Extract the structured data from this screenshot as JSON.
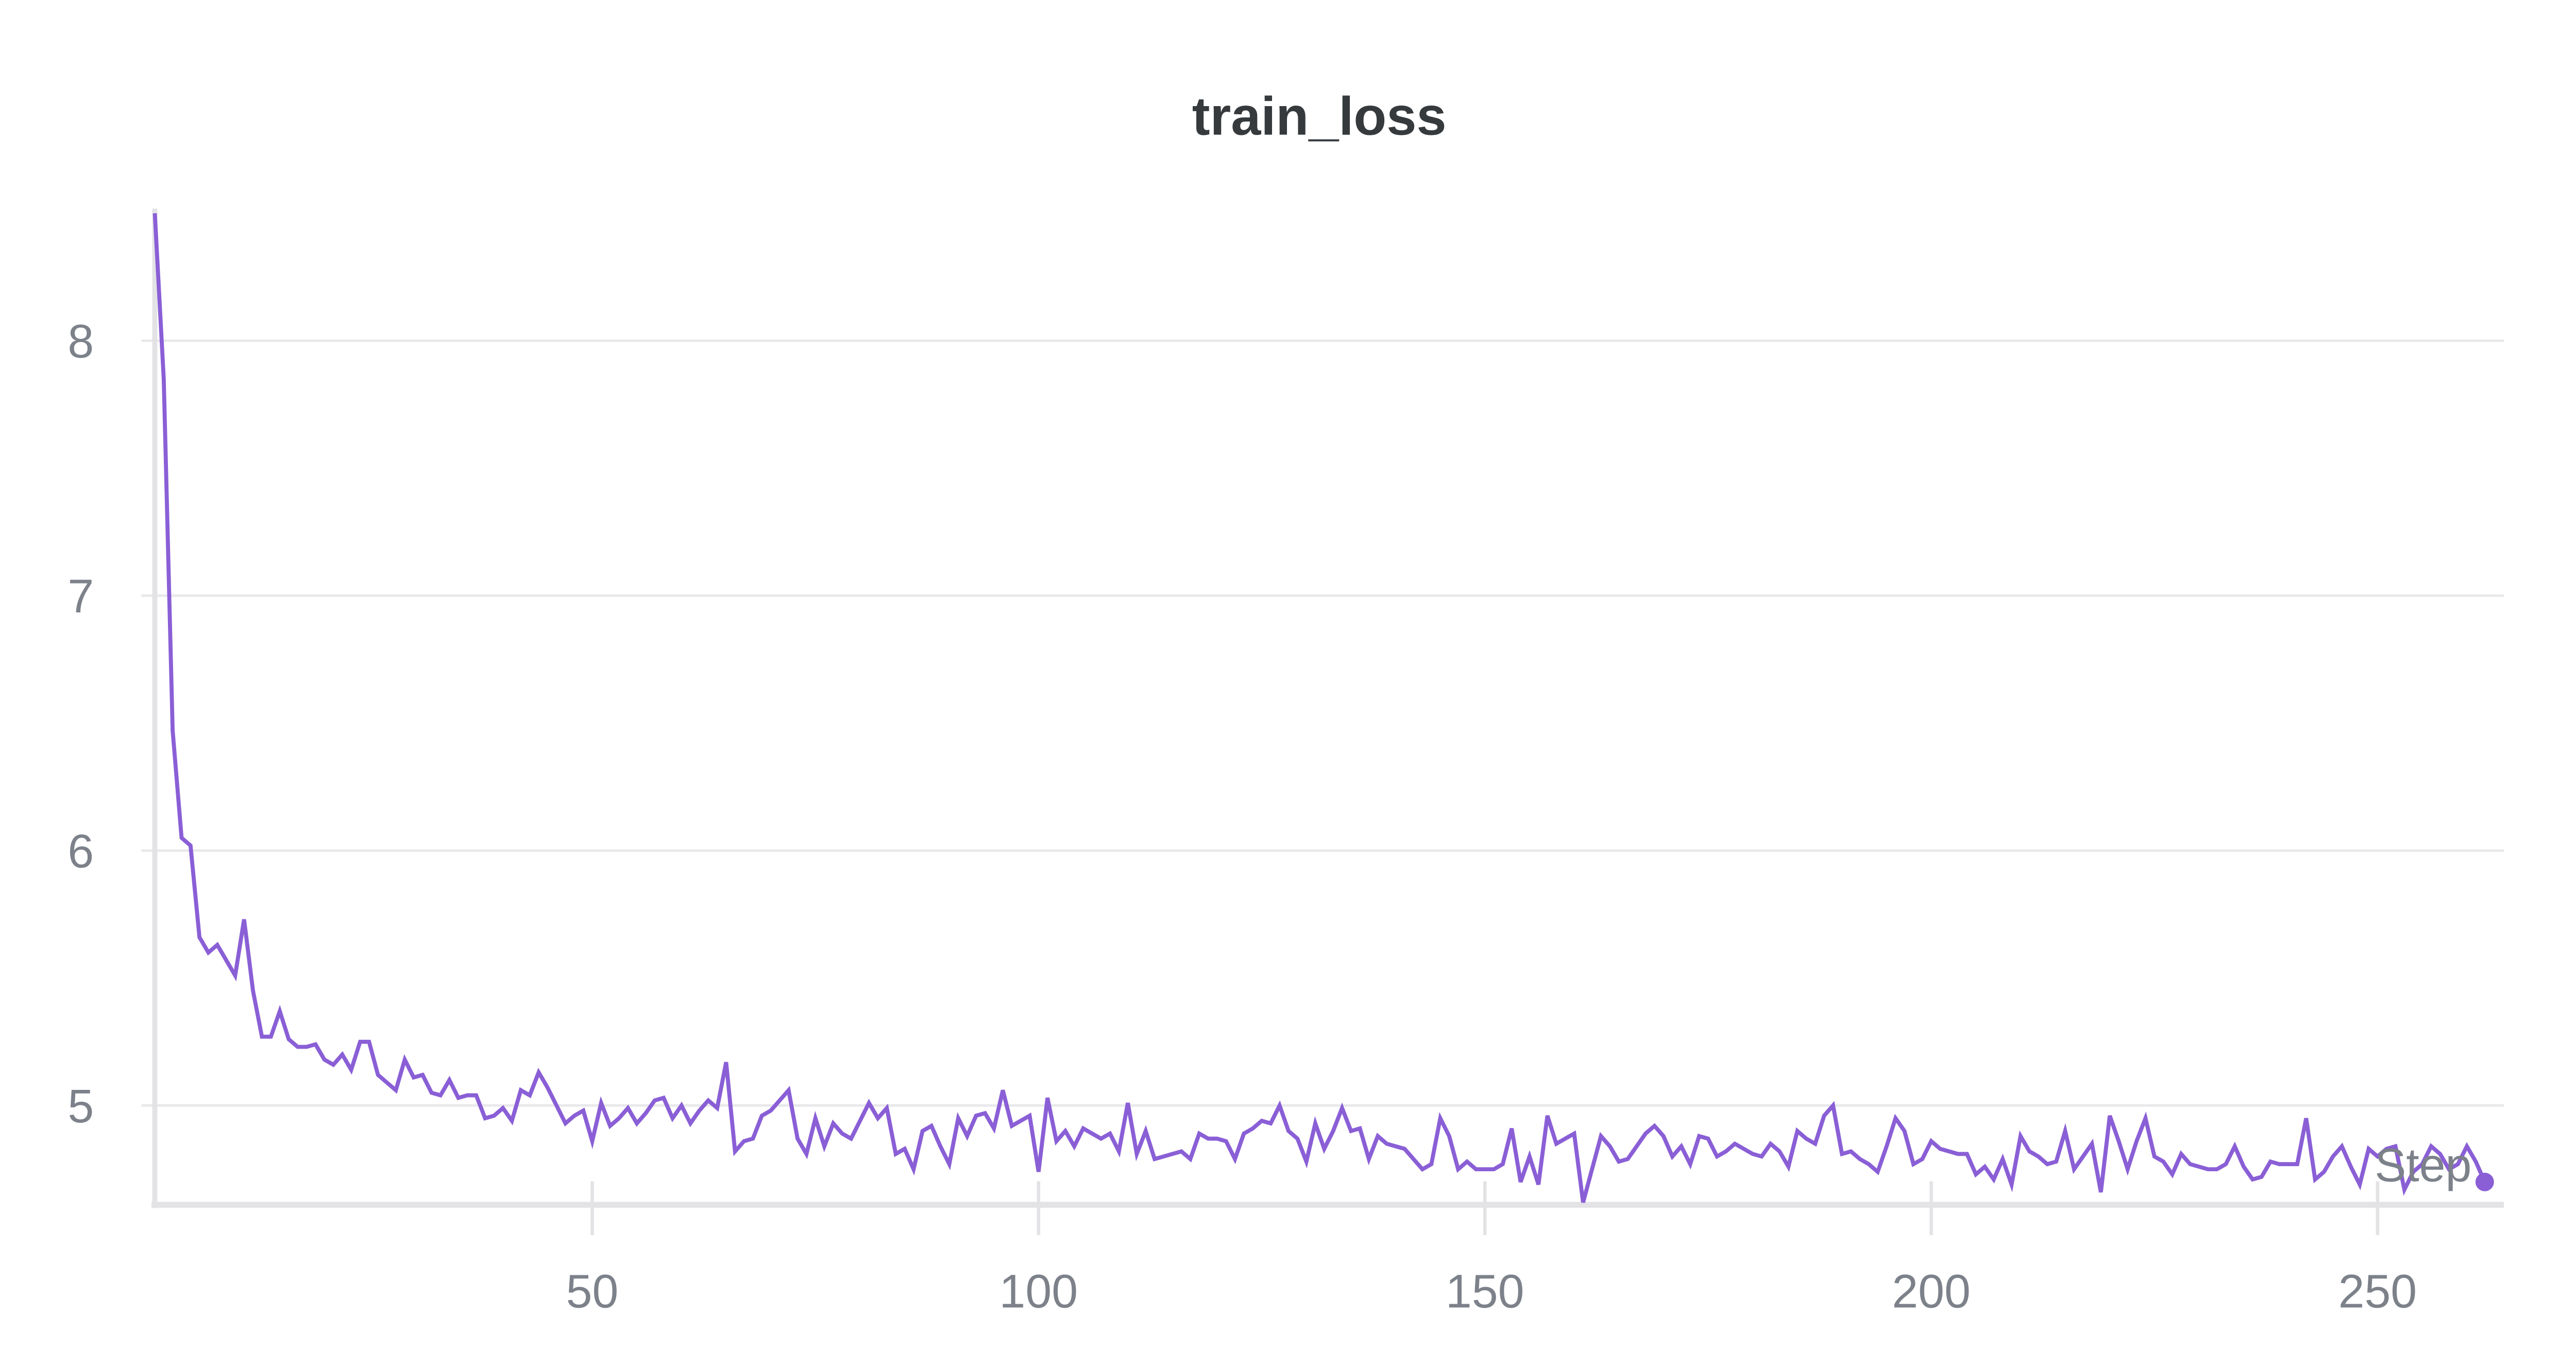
{
  "chart_data": {
    "type": "line",
    "title": "train_loss",
    "xlabel": "Step",
    "ylabel": "",
    "xlim": [
      1,
      264
    ],
    "ylim": [
      4.61,
      8.51
    ],
    "x_ticks": [
      50,
      100,
      150,
      200,
      250
    ],
    "y_ticks": [
      5,
      6,
      7,
      8
    ],
    "grid": {
      "horizontal": true,
      "vertical": false
    },
    "legend": null,
    "series": [
      {
        "name": "train_loss",
        "color": "#8a5fd6",
        "x_start": 1,
        "x_step": 1,
        "values": [
          8.5,
          7.85,
          6.47,
          6.05,
          6.02,
          5.66,
          5.6,
          5.63,
          5.57,
          5.51,
          5.73,
          5.45,
          5.27,
          5.27,
          5.37,
          5.26,
          5.23,
          5.23,
          5.24,
          5.18,
          5.16,
          5.2,
          5.14,
          5.25,
          5.25,
          5.12,
          5.09,
          5.06,
          5.18,
          5.11,
          5.12,
          5.05,
          5.04,
          5.1,
          5.03,
          5.04,
          5.04,
          4.95,
          4.96,
          4.99,
          4.94,
          5.06,
          5.04,
          5.13,
          5.07,
          5.0,
          4.93,
          4.96,
          4.98,
          4.86,
          5.01,
          4.92,
          4.95,
          4.99,
          4.93,
          4.97,
          5.02,
          5.03,
          4.95,
          5.0,
          4.93,
          4.98,
          5.02,
          4.99,
          5.17,
          4.82,
          4.86,
          4.87,
          4.96,
          4.98,
          5.02,
          5.06,
          4.87,
          4.81,
          4.95,
          4.84,
          4.93,
          4.89,
          4.87,
          4.94,
          5.01,
          4.95,
          4.99,
          4.81,
          4.83,
          4.75,
          4.9,
          4.92,
          4.84,
          4.77,
          4.95,
          4.88,
          4.96,
          4.97,
          4.91,
          5.06,
          4.92,
          4.94,
          4.96,
          4.74,
          5.03,
          4.86,
          4.9,
          4.84,
          4.91,
          4.89,
          4.87,
          4.89,
          4.82,
          5.01,
          4.81,
          4.9,
          4.79,
          4.8,
          4.81,
          4.82,
          4.79,
          4.89,
          4.87,
          4.87,
          4.86,
          4.79,
          4.89,
          4.91,
          4.94,
          4.93,
          5.0,
          4.9,
          4.87,
          4.78,
          4.93,
          4.83,
          4.9,
          4.99,
          4.9,
          4.91,
          4.79,
          4.88,
          4.85,
          4.84,
          4.83,
          4.79,
          4.75,
          4.77,
          4.95,
          4.88,
          4.75,
          4.78,
          4.75,
          4.75,
          4.75,
          4.77,
          4.91,
          4.7,
          4.8,
          4.69,
          4.96,
          4.85,
          4.87,
          4.89,
          4.62,
          4.75,
          4.88,
          4.84,
          4.78,
          4.79,
          4.84,
          4.89,
          4.92,
          4.88,
          4.8,
          4.84,
          4.77,
          4.88,
          4.87,
          4.8,
          4.82,
          4.85,
          4.83,
          4.81,
          4.8,
          4.85,
          4.82,
          4.76,
          4.9,
          4.87,
          4.85,
          4.96,
          5.0,
          4.81,
          4.82,
          4.79,
          4.77,
          4.74,
          4.84,
          4.95,
          4.9,
          4.77,
          4.79,
          4.86,
          4.83,
          4.82,
          4.81,
          4.81,
          4.73,
          4.76,
          4.71,
          4.79,
          4.69,
          4.88,
          4.82,
          4.8,
          4.77,
          4.78,
          4.9,
          4.75,
          4.8,
          4.85,
          4.66,
          4.96,
          4.86,
          4.75,
          4.86,
          4.95,
          4.8,
          4.78,
          4.73,
          4.81,
          4.77,
          4.76,
          4.75,
          4.75,
          4.77,
          4.84,
          4.76,
          4.71,
          4.72,
          4.78,
          4.77,
          4.77,
          4.77,
          4.95,
          4.71,
          4.74,
          4.8,
          4.84,
          4.76,
          4.69,
          4.83,
          4.8,
          4.83,
          4.84,
          4.67,
          4.74,
          4.77,
          4.84,
          4.81,
          4.75,
          4.77,
          4.84,
          4.78,
          4.7
        ]
      }
    ]
  },
  "labels": {
    "title": "train_loss",
    "x_axis_label": "Step",
    "y_ticks": [
      "8",
      "7",
      "6",
      "5"
    ],
    "x_ticks": [
      "50",
      "100",
      "150",
      "200",
      "250"
    ]
  },
  "colors": {
    "line": "#8a5fd6",
    "grid": "#e9e9ec",
    "axis": "#e3e3e6",
    "title": "#363a3d",
    "tick_text": "#7c818a"
  }
}
